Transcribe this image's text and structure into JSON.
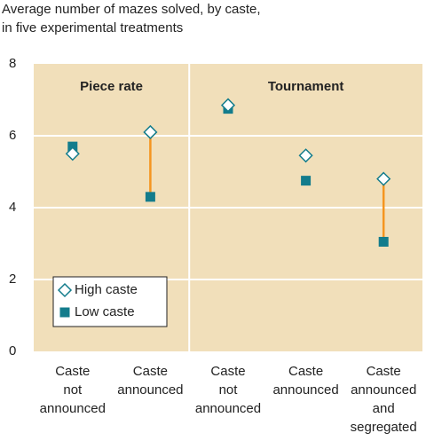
{
  "chart_data": {
    "type": "dot",
    "title": "Average number of mazes solved, by caste,\nin five experimental treatments",
    "categories": [
      "Caste\nnot\nannounced",
      "Caste\nannounced",
      "Caste\nnot\nannounced",
      "Caste\nannounced",
      "Caste\nannounced\nand\nsegregated"
    ],
    "groups": [
      {
        "name": "Piece rate",
        "count": 2
      },
      {
        "name": "Tournament",
        "count": 3
      }
    ],
    "series": [
      {
        "name": "High caste",
        "color": "#137c8c",
        "marker": "diamond",
        "values": [
          5.5,
          6.1,
          6.85,
          5.45,
          4.8
        ]
      },
      {
        "name": "Low caste",
        "color": "#137c8c",
        "marker": "square",
        "values": [
          5.7,
          4.3,
          6.75,
          4.75,
          3.05
        ]
      }
    ],
    "highlighted": [
      false,
      true,
      false,
      false,
      true
    ],
    "connector_color": "#f5951f",
    "background": "#f1dfba",
    "ylim": [
      0,
      8
    ],
    "yticks": [
      0,
      2,
      4,
      6,
      8
    ],
    "grid": true,
    "legend": "lower left"
  }
}
